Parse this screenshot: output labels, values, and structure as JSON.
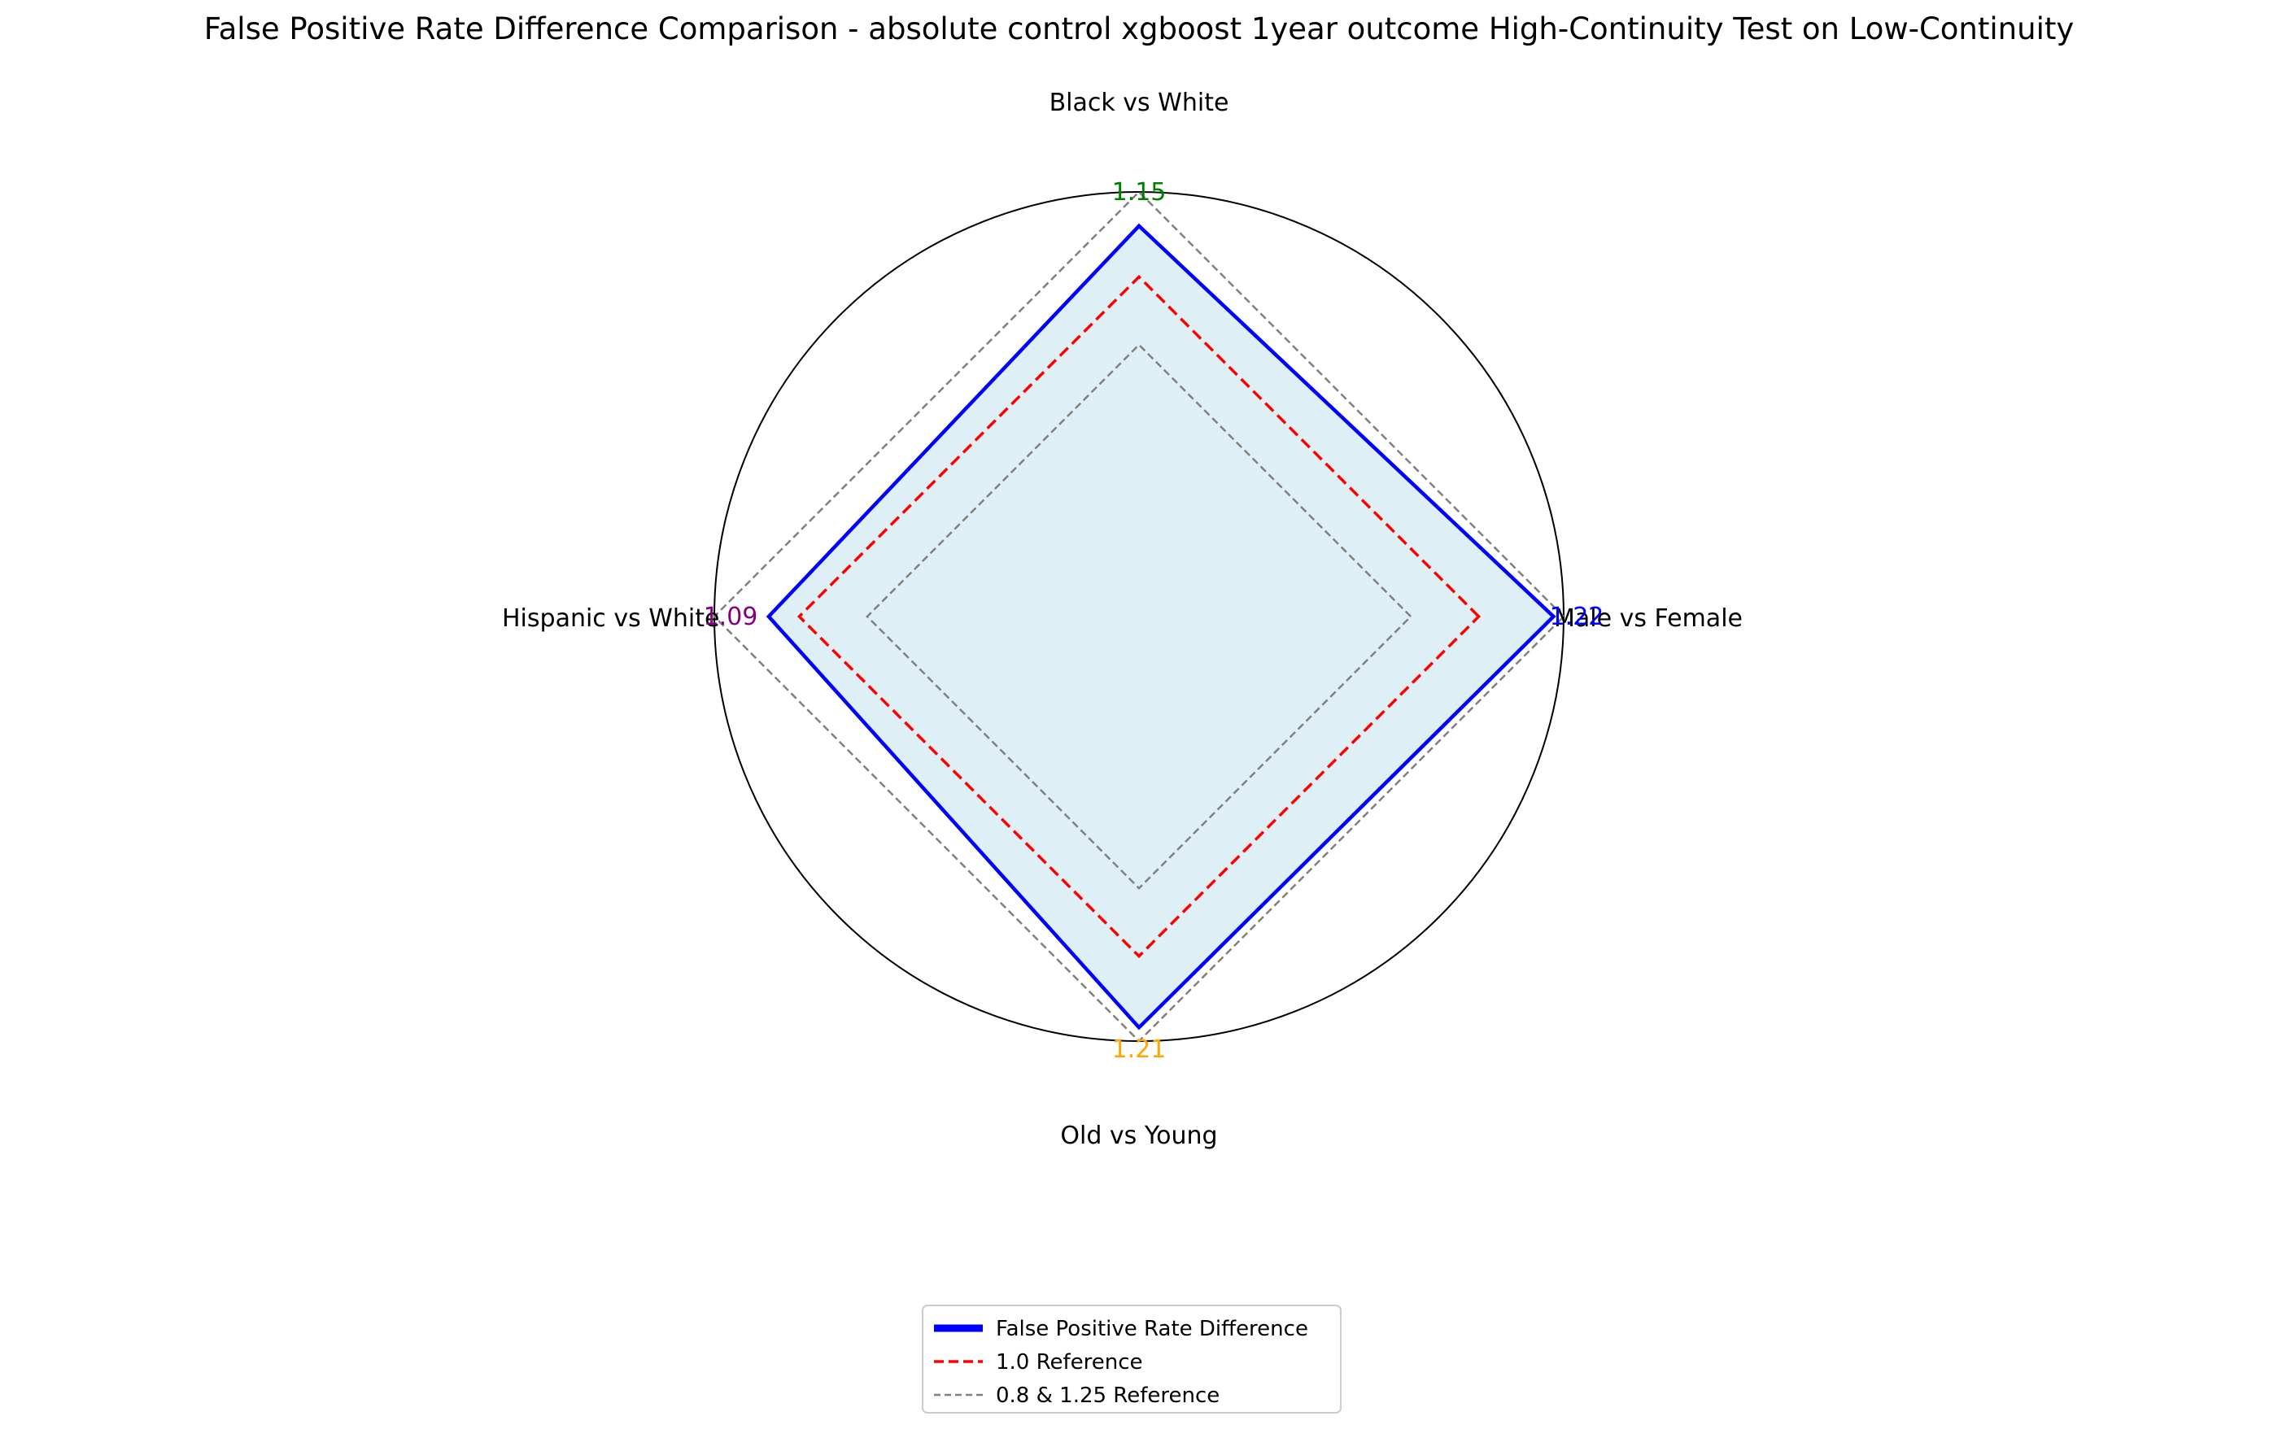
{
  "chart_data": {
    "type": "radar",
    "title": "False Positive Rate Difference Comparison - absolute control xgboost 1year outcome High-Continuity Test on Low-Continuity",
    "categories": [
      "Male vs Female",
      "Black vs White",
      "Hispanic vs White",
      "Old vs Young"
    ],
    "series": [
      {
        "name": "False Positive Rate Difference",
        "values": [
          1.22,
          1.15,
          1.09,
          1.21
        ],
        "color": "#0000ff",
        "fill": "#add8e6"
      }
    ],
    "value_labels": [
      {
        "category": "Male vs Female",
        "text": "1.22",
        "color": "#0000ff"
      },
      {
        "category": "Black vs White",
        "text": "1.15",
        "color": "#008000"
      },
      {
        "category": "Hispanic vs White",
        "text": "1.09",
        "color": "#800080"
      },
      {
        "category": "Old vs Young",
        "text": "1.21",
        "color": "#ffa500"
      }
    ],
    "reference_lines": [
      {
        "value": 1.0,
        "name": "1.0 Reference",
        "color": "#ff0000",
        "style": "dashed"
      },
      {
        "value": 0.8,
        "name": "0.8 & 1.25 Reference",
        "color": "#808080",
        "style": "dashed"
      },
      {
        "value": 1.25,
        "name": "0.8 & 1.25 Reference",
        "color": "#808080",
        "style": "dashed"
      }
    ],
    "rlim": [
      0,
      1.25
    ],
    "grid": false,
    "legend": {
      "placement": "bottom-center",
      "entries": [
        {
          "label": "False Positive Rate Difference",
          "color": "#0000ff",
          "style": "solid-thick"
        },
        {
          "label": "1.0 Reference",
          "color": "#ff0000",
          "style": "dashed"
        },
        {
          "label": "0.8 & 1.25 Reference",
          "color": "#808080",
          "style": "dashed"
        }
      ]
    }
  }
}
